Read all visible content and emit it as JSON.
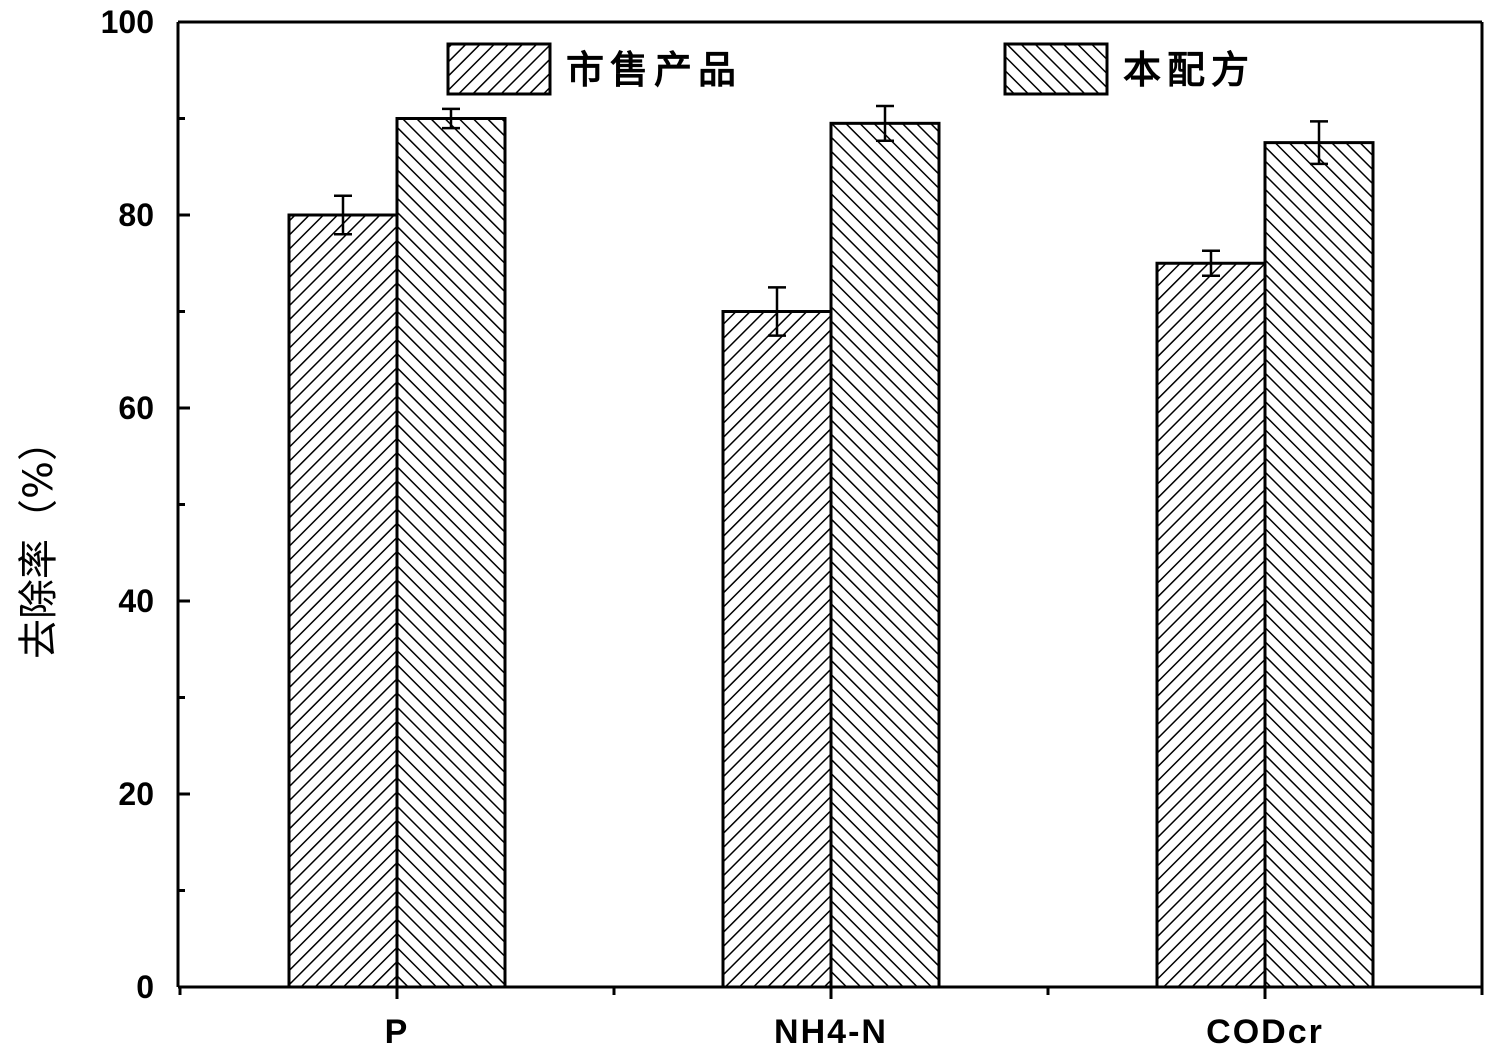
{
  "chart_data": {
    "type": "bar",
    "title": "",
    "xlabel": "",
    "ylabel": "去除率（%）",
    "categories": [
      "P",
      "NH4-N",
      "CODcr"
    ],
    "series": [
      {
        "name": "市售产品",
        "values": [
          80,
          70,
          75
        ],
        "errors": [
          2,
          2.5,
          1.3
        ],
        "pattern": "forward-hatch"
      },
      {
        "name": "本配方",
        "values": [
          90,
          89.5,
          87.5
        ],
        "errors": [
          1,
          1.8,
          2.2
        ],
        "pattern": "backward-hatch"
      }
    ],
    "ylim": [
      0,
      100
    ],
    "yticks": [
      0,
      20,
      40,
      60,
      80,
      100
    ],
    "grid": false,
    "legend_position": "top"
  }
}
